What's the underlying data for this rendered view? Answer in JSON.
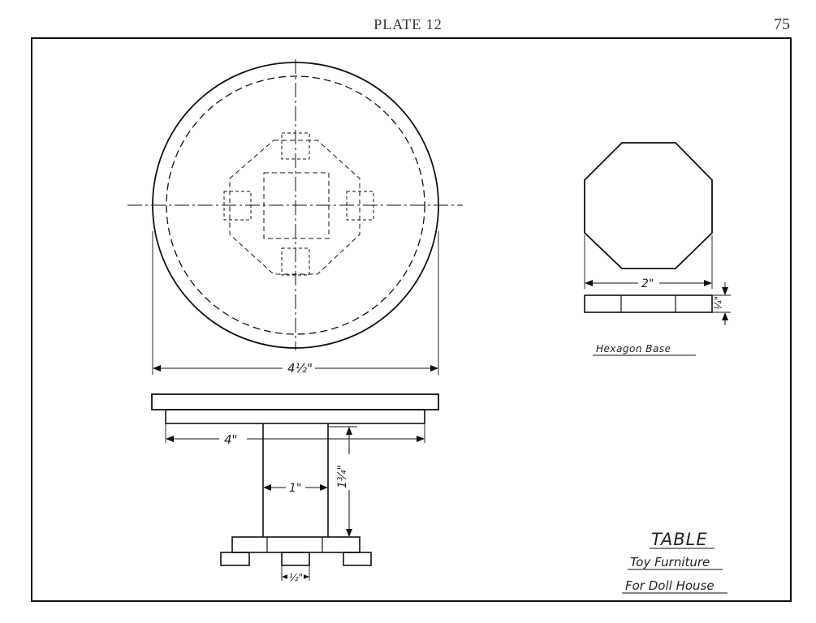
{
  "header": {
    "title": "PLATE 12",
    "page_number": "75"
  },
  "drawing": {
    "dimensions": {
      "top_diameter": "4½\"",
      "top_under_width": "4\"",
      "leg_width": "1\"",
      "leg_height": "1¾\"",
      "foot_width": "½\"",
      "hex_base_width": "2\"",
      "hex_base_thickness": "¼\""
    },
    "hex_caption": "Hexagon Base",
    "title_block": {
      "title": "TABLE",
      "line1": "Toy Furniture",
      "line2": "For Doll House"
    }
  }
}
